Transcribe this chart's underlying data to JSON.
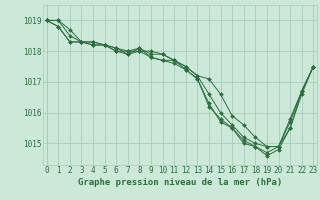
{
  "title": "Graphe pression niveau de la mer (hPa)",
  "bg_color": "#cbe8d8",
  "grid_color": "#a8ccbc",
  "line_color": "#2d6e3e",
  "marker_color": "#2d6e3e",
  "x_ticks": [
    0,
    1,
    2,
    3,
    4,
    5,
    6,
    7,
    8,
    9,
    10,
    11,
    12,
    13,
    14,
    15,
    16,
    17,
    18,
    19,
    20,
    21,
    22,
    23
  ],
  "y_ticks": [
    1015,
    1016,
    1017,
    1018,
    1019
  ],
  "ylim": [
    1014.3,
    1019.5
  ],
  "xlim": [
    -0.3,
    23.3
  ],
  "lines": [
    [
      1019.0,
      1019.0,
      1018.7,
      1018.3,
      1018.3,
      1018.2,
      1018.1,
      1018.0,
      1018.0,
      1018.0,
      1017.9,
      1017.7,
      1017.5,
      1017.2,
      1017.1,
      1016.6,
      1015.9,
      1015.6,
      1015.2,
      1014.9,
      1014.9,
      1015.8,
      1016.7,
      1017.5
    ],
    [
      1019.0,
      1019.0,
      1018.5,
      1018.3,
      1018.2,
      1018.2,
      1018.1,
      1017.9,
      1018.0,
      1017.8,
      1017.7,
      1017.7,
      1017.4,
      1017.1,
      1016.2,
      1015.8,
      1015.5,
      1015.0,
      1014.9,
      1014.7,
      1014.9,
      1015.5,
      1016.7,
      1017.5
    ],
    [
      1019.0,
      1018.8,
      1018.3,
      1018.3,
      1018.2,
      1018.2,
      1018.0,
      1017.9,
      1018.1,
      1017.8,
      1017.7,
      1017.6,
      1017.4,
      1017.1,
      1016.3,
      1015.7,
      1015.5,
      1015.1,
      1014.9,
      1014.6,
      1014.8,
      1015.5,
      1016.6,
      1017.5
    ],
    [
      1019.0,
      1018.8,
      1018.3,
      1018.3,
      1018.3,
      1018.2,
      1018.0,
      1018.0,
      1018.1,
      1017.9,
      1017.9,
      1017.7,
      1017.5,
      1017.2,
      1016.6,
      1016.0,
      1015.6,
      1015.2,
      1015.0,
      1014.9,
      1014.9,
      1015.7,
      1016.7,
      1017.5
    ]
  ],
  "tick_fontsize": 5.5,
  "xlabel_fontsize": 6.5
}
